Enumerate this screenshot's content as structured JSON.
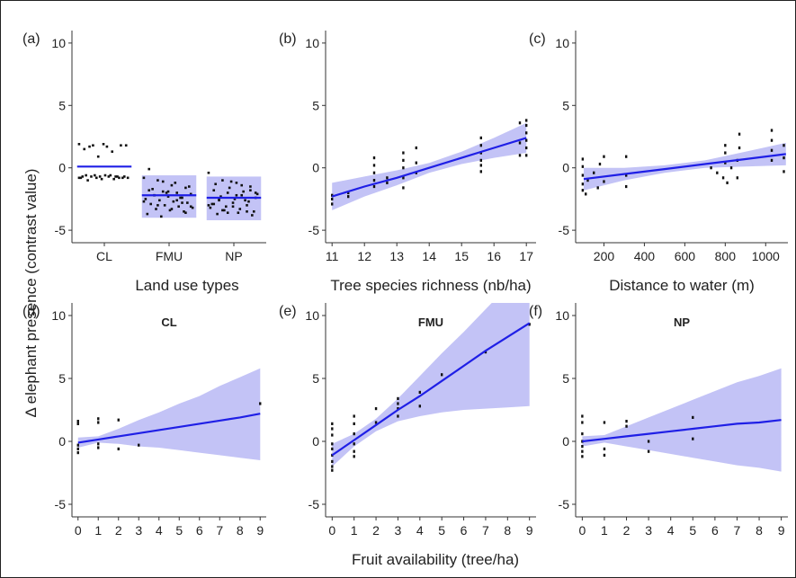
{
  "figure": {
    "ylabel": "Δ elephant presence (contrast value)",
    "bottom_xlabel": "Fruit availability (tree/ha)"
  },
  "colors": {
    "line": "#1f1fe6",
    "band": "#b8b8f4",
    "point": "#111111",
    "axis": "#333333",
    "title": "#1a1ae6"
  },
  "chart_data": [
    {
      "panel_label": "(a)",
      "type": "scatter",
      "x_type": "categorical",
      "title": "",
      "xlabel": "Land use types",
      "categories": [
        "CL",
        "FMU",
        "NP"
      ],
      "ylim": [
        -6,
        11
      ],
      "yticks": [
        -5,
        0,
        5,
        10
      ],
      "groups": [
        {
          "category": "CL",
          "mean": 0.1,
          "lower": null,
          "upper": null,
          "points": [
            1.9,
            1.8,
            1.7,
            1.8,
            1.5,
            0.9,
            1.3,
            1.8,
            1.7,
            1.9,
            -0.7,
            -0.8,
            -0.6,
            -0.7,
            -0.8,
            -0.6,
            -0.7,
            -0.9,
            -0.8,
            -0.7,
            -0.6,
            -0.8,
            -0.7,
            -0.8,
            -0.6,
            -0.7,
            -1.0,
            -0.9,
            -0.7,
            -0.8
          ]
        },
        {
          "category": "FMU",
          "mean": -2.2,
          "lower": -4.0,
          "upper": -0.6,
          "points": [
            -0.8,
            -1.0,
            -1.4,
            -1.6,
            -1.8,
            -1.9,
            -2.0,
            -2.1,
            -2.2,
            -2.3,
            -2.4,
            -2.5,
            -2.6,
            -2.7,
            -2.8,
            -2.9,
            -3.0,
            -3.1,
            -3.2,
            -3.3,
            -3.4,
            -3.5,
            -3.7,
            -3.9,
            -1.2,
            -1.5,
            -1.7,
            -2.0,
            -2.4,
            -2.7,
            -3.0,
            -3.3,
            -3.6,
            -0.1,
            -1.1,
            -2.6,
            -3.1,
            -2.2,
            -1.9,
            -2.8
          ]
        },
        {
          "category": "NP",
          "mean": -2.4,
          "lower": -4.2,
          "upper": -0.7,
          "points": [
            -0.4,
            -1.0,
            -1.2,
            -1.5,
            -1.8,
            -2.0,
            -2.2,
            -2.4,
            -2.6,
            -2.8,
            -3.0,
            -3.2,
            -3.4,
            -3.6,
            -3.8,
            -1.3,
            -1.6,
            -1.9,
            -2.1,
            -2.3,
            -2.5,
            -2.7,
            -2.9,
            -3.1,
            -3.3,
            -3.5,
            -3.7,
            -1.1,
            -2.6,
            -3.0,
            -3.4,
            -2.2,
            -1.8,
            -2.9,
            -3.6,
            -1.4,
            -2.0,
            -2.5,
            -3.1,
            -3.5
          ]
        }
      ]
    },
    {
      "panel_label": "(b)",
      "type": "scatter",
      "x_type": "numeric",
      "title": "",
      "xlabel": "Tree species richness (nb/ha)",
      "xlim": [
        10.8,
        17.3
      ],
      "xticks": [
        11,
        12,
        13,
        14,
        15,
        16,
        17
      ],
      "ylim": [
        -6,
        11
      ],
      "yticks": [
        -5,
        0,
        5,
        10
      ],
      "fit": {
        "x": [
          11.0,
          12.0,
          13.0,
          14.0,
          15.0,
          16.0,
          17.0
        ],
        "y": [
          -2.3,
          -1.5,
          -0.8,
          0.0,
          0.8,
          1.6,
          2.4
        ],
        "lower": [
          -3.4,
          -2.3,
          -1.4,
          -0.4,
          0.3,
          0.8,
          1.2
        ],
        "upper": [
          -1.2,
          -0.7,
          -0.2,
          0.4,
          1.3,
          2.4,
          3.6
        ]
      },
      "points": [
        [
          11,
          -2.9
        ],
        [
          11,
          -2.5
        ],
        [
          11,
          -2.2
        ],
        [
          11.5,
          -2.3
        ],
        [
          11.5,
          -2.0
        ],
        [
          12.3,
          -1.5
        ],
        [
          12.3,
          -1.0
        ],
        [
          12.3,
          -0.4
        ],
        [
          12.3,
          0.2
        ],
        [
          12.3,
          0.8
        ],
        [
          12.7,
          -0.8
        ],
        [
          12.7,
          -1.2
        ],
        [
          13.2,
          -1.6
        ],
        [
          13.2,
          -0.8
        ],
        [
          13.2,
          0.0
        ],
        [
          13.2,
          0.6
        ],
        [
          13.2,
          1.2
        ],
        [
          13.6,
          -0.4
        ],
        [
          13.6,
          0.4
        ],
        [
          13.6,
          1.6
        ],
        [
          15.6,
          -0.3
        ],
        [
          15.6,
          0.2
        ],
        [
          15.6,
          0.6
        ],
        [
          15.6,
          1.2
        ],
        [
          15.6,
          1.8
        ],
        [
          15.6,
          2.4
        ],
        [
          16.8,
          1.0
        ],
        [
          16.8,
          2.0
        ],
        [
          16.8,
          3.6
        ],
        [
          17,
          1.0
        ],
        [
          17,
          1.6
        ],
        [
          17,
          2.2
        ],
        [
          17,
          2.8
        ],
        [
          17,
          3.4
        ],
        [
          17,
          3.8
        ]
      ]
    },
    {
      "panel_label": "(c)",
      "type": "scatter",
      "x_type": "numeric",
      "title": "",
      "xlabel": "Distance to water (m)",
      "xlim": [
        60,
        1110
      ],
      "xticks": [
        200,
        400,
        600,
        800,
        1000
      ],
      "ylim": [
        -6,
        11
      ],
      "yticks": [
        -5,
        0,
        5,
        10
      ],
      "fit": {
        "x": [
          100,
          300,
          500,
          700,
          900,
          1100
        ],
        "y": [
          -0.9,
          -0.5,
          -0.1,
          0.3,
          0.7,
          1.1
        ],
        "lower": [
          -1.8,
          -1.0,
          -0.4,
          0.0,
          0.1,
          0.2
        ],
        "upper": [
          0.0,
          0.0,
          0.2,
          0.6,
          1.3,
          2.0
        ]
      },
      "points": [
        [
          95,
          -1.8
        ],
        [
          95,
          -1.3
        ],
        [
          95,
          -0.6
        ],
        [
          95,
          0.1
        ],
        [
          95,
          0.7
        ],
        [
          110,
          -2.1
        ],
        [
          120,
          -1.0
        ],
        [
          150,
          -0.4
        ],
        [
          170,
          -1.6
        ],
        [
          180,
          0.3
        ],
        [
          200,
          -1.1
        ],
        [
          200,
          0.9
        ],
        [
          310,
          -1.5
        ],
        [
          310,
          -0.6
        ],
        [
          310,
          0.9
        ],
        [
          730,
          0.0
        ],
        [
          760,
          -0.4
        ],
        [
          790,
          -0.8
        ],
        [
          800,
          0.4
        ],
        [
          800,
          1.2
        ],
        [
          800,
          1.8
        ],
        [
          810,
          -1.2
        ],
        [
          830,
          0.0
        ],
        [
          860,
          -0.8
        ],
        [
          860,
          0.6
        ],
        [
          870,
          1.6
        ],
        [
          870,
          2.7
        ],
        [
          1030,
          0.6
        ],
        [
          1030,
          1.4
        ],
        [
          1030,
          2.2
        ],
        [
          1030,
          3.0
        ],
        [
          1090,
          -0.3
        ],
        [
          1090,
          0.8
        ],
        [
          1090,
          1.8
        ]
      ]
    },
    {
      "panel_label": "(d)",
      "type": "scatter",
      "x_type": "numeric",
      "title": "CL",
      "xlabel": "",
      "xlim": [
        -0.3,
        9.3
      ],
      "xticks": [
        0,
        1,
        2,
        3,
        4,
        5,
        6,
        7,
        8,
        9
      ],
      "ylim": [
        -6,
        11
      ],
      "yticks": [
        -5,
        0,
        5,
        10
      ],
      "fit": {
        "x": [
          0,
          1,
          2,
          3,
          4,
          5,
          6,
          7,
          8,
          9
        ],
        "y": [
          -0.1,
          0.15,
          0.4,
          0.65,
          0.9,
          1.15,
          1.4,
          1.65,
          1.9,
          2.2
        ],
        "lower": [
          -0.5,
          -0.1,
          -0.2,
          -0.4,
          -0.5,
          -0.7,
          -0.9,
          -1.1,
          -1.3,
          -1.5
        ],
        "upper": [
          0.3,
          0.4,
          1.0,
          1.7,
          2.3,
          3.0,
          3.6,
          4.4,
          5.1,
          5.8
        ]
      },
      "points": [
        [
          0,
          1.6
        ],
        [
          0,
          1.4
        ],
        [
          0,
          -0.3
        ],
        [
          0,
          -0.6
        ],
        [
          0,
          -0.9
        ],
        [
          1,
          1.8
        ],
        [
          1,
          1.5
        ],
        [
          1,
          -0.2
        ],
        [
          1,
          -0.5
        ],
        [
          2,
          1.7
        ],
        [
          2,
          -0.6
        ],
        [
          3,
          -0.3
        ],
        [
          9,
          3.0
        ]
      ]
    },
    {
      "panel_label": "(e)",
      "type": "scatter",
      "x_type": "numeric",
      "title": "FMU",
      "xlabel": "Fruit availability (tree/ha)",
      "xlim": [
        -0.3,
        9.3
      ],
      "xticks": [
        0,
        1,
        2,
        3,
        4,
        5,
        6,
        7,
        8,
        9
      ],
      "ylim": [
        -6,
        11
      ],
      "yticks": [
        -5,
        0,
        5,
        10
      ],
      "fit": {
        "x": [
          0,
          1,
          2,
          3,
          4,
          5,
          6,
          7,
          8,
          9
        ],
        "y": [
          -1.1,
          0.1,
          1.3,
          2.5,
          3.6,
          4.8,
          6.0,
          7.2,
          8.3,
          9.4
        ],
        "lower": [
          -2.0,
          -0.4,
          0.8,
          1.6,
          2.0,
          2.3,
          2.5,
          2.6,
          2.7,
          2.8
        ],
        "upper": [
          -0.2,
          0.6,
          1.8,
          3.4,
          5.2,
          7.0,
          8.7,
          10.5,
          12.3,
          14.0
        ]
      },
      "points": [
        [
          0,
          1.4
        ],
        [
          0,
          1.0
        ],
        [
          0,
          0.5
        ],
        [
          0,
          -0.2
        ],
        [
          0,
          -0.6
        ],
        [
          0,
          -1.1
        ],
        [
          0,
          -1.6
        ],
        [
          0,
          -2.0
        ],
        [
          0,
          -2.3
        ],
        [
          1,
          2.0
        ],
        [
          1,
          1.4
        ],
        [
          1,
          0.6
        ],
        [
          1,
          -0.2
        ],
        [
          1,
          -0.8
        ],
        [
          1,
          -1.2
        ],
        [
          2,
          1.5
        ],
        [
          2,
          2.6
        ],
        [
          3,
          2.0
        ],
        [
          3,
          2.6
        ],
        [
          3,
          3.0
        ],
        [
          3,
          3.4
        ],
        [
          4,
          2.8
        ],
        [
          4,
          3.9
        ],
        [
          5,
          5.3
        ],
        [
          7,
          7.1
        ],
        [
          9,
          9.3
        ]
      ]
    },
    {
      "panel_label": "(f)",
      "type": "scatter",
      "x_type": "numeric",
      "title": "NP",
      "xlabel": "",
      "xlim": [
        -0.3,
        9.3
      ],
      "xticks": [
        0,
        1,
        2,
        3,
        4,
        5,
        6,
        7,
        8,
        9
      ],
      "ylim": [
        -6,
        11
      ],
      "yticks": [
        -5,
        0,
        5,
        10
      ],
      "fit": {
        "x": [
          0,
          1,
          2,
          3,
          4,
          5,
          6,
          7,
          8,
          9
        ],
        "y": [
          0.0,
          0.2,
          0.4,
          0.6,
          0.8,
          1.0,
          1.2,
          1.4,
          1.5,
          1.7
        ],
        "lower": [
          -0.4,
          -0.1,
          -0.4,
          -0.7,
          -1.0,
          -1.3,
          -1.6,
          -1.9,
          -2.1,
          -2.4
        ],
        "upper": [
          0.4,
          0.5,
          1.2,
          1.9,
          2.6,
          3.3,
          4.0,
          4.7,
          5.2,
          5.8
        ]
      },
      "points": [
        [
          0,
          2.0
        ],
        [
          0,
          1.5
        ],
        [
          0,
          0.6
        ],
        [
          0,
          0.0
        ],
        [
          0,
          -0.4
        ],
        [
          0,
          -0.8
        ],
        [
          0,
          -1.2
        ],
        [
          1,
          1.5
        ],
        [
          1,
          -0.6
        ],
        [
          1,
          -1.1
        ],
        [
          2,
          1.6
        ],
        [
          2,
          1.2
        ],
        [
          3,
          0.0
        ],
        [
          3,
          -0.8
        ],
        [
          5,
          1.9
        ],
        [
          5,
          0.2
        ]
      ]
    }
  ]
}
